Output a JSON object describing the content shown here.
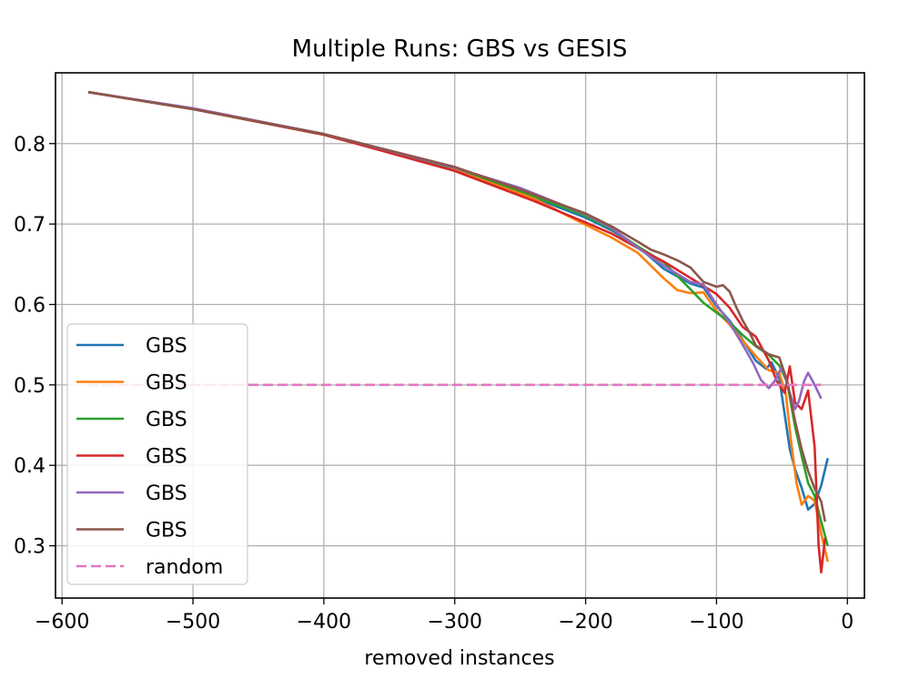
{
  "chart_data": {
    "type": "line",
    "title": "Multiple Runs: GBS vs GESIS",
    "xlabel": "removed instances",
    "ylabel": "",
    "xlim": [
      -605,
      13
    ],
    "ylim": [
      0.235,
      0.888
    ],
    "xticks": [
      -600,
      -500,
      -400,
      -300,
      -200,
      -100,
      0
    ],
    "xtick_labels": [
      "−600",
      "−500",
      "−400",
      "−300",
      "−200",
      "−100",
      "0"
    ],
    "yticks": [
      0.3,
      0.4,
      0.5,
      0.6,
      0.7,
      0.8
    ],
    "ytick_labels": [
      "0.3",
      "0.4",
      "0.5",
      "0.6",
      "0.7",
      "0.8"
    ],
    "grid": true,
    "legend_position": "lower-left",
    "series": [
      {
        "name": "GBS",
        "color": "#1f77b4",
        "dashed": false,
        "points": [
          [
            -580,
            0.864
          ],
          [
            -500,
            0.843
          ],
          [
            -400,
            0.811
          ],
          [
            -300,
            0.768
          ],
          [
            -240,
            0.733
          ],
          [
            -200,
            0.708
          ],
          [
            -180,
            0.692
          ],
          [
            -160,
            0.672
          ],
          [
            -140,
            0.644
          ],
          [
            -120,
            0.626
          ],
          [
            -110,
            0.621
          ],
          [
            -100,
            0.598
          ],
          [
            -90,
            0.58
          ],
          [
            -80,
            0.556
          ],
          [
            -70,
            0.53
          ],
          [
            -62,
            0.52
          ],
          [
            -58,
            0.528
          ],
          [
            -52,
            0.508
          ],
          [
            -48,
            0.464
          ],
          [
            -44,
            0.42
          ],
          [
            -40,
            0.395
          ],
          [
            -35,
            0.372
          ],
          [
            -30,
            0.345
          ],
          [
            -25,
            0.352
          ],
          [
            -20,
            0.375
          ],
          [
            -15,
            0.409
          ]
        ]
      },
      {
        "name": "GBS",
        "color": "#ff7f0e",
        "dashed": false,
        "points": [
          [
            -580,
            0.864
          ],
          [
            -500,
            0.843
          ],
          [
            -400,
            0.811
          ],
          [
            -300,
            0.768
          ],
          [
            -240,
            0.732
          ],
          [
            -200,
            0.699
          ],
          [
            -180,
            0.683
          ],
          [
            -160,
            0.664
          ],
          [
            -140,
            0.632
          ],
          [
            -130,
            0.618
          ],
          [
            -120,
            0.614
          ],
          [
            -110,
            0.615
          ],
          [
            -100,
            0.592
          ],
          [
            -90,
            0.575
          ],
          [
            -80,
            0.555
          ],
          [
            -70,
            0.536
          ],
          [
            -60,
            0.518
          ],
          [
            -52,
            0.515
          ],
          [
            -47,
            0.488
          ],
          [
            -43,
            0.43
          ],
          [
            -39,
            0.379
          ],
          [
            -35,
            0.351
          ],
          [
            -30,
            0.362
          ],
          [
            -25,
            0.356
          ],
          [
            -20,
            0.315
          ],
          [
            -15,
            0.28
          ]
        ]
      },
      {
        "name": "GBS",
        "color": "#2ca02c",
        "dashed": false,
        "points": [
          [
            -580,
            0.864
          ],
          [
            -500,
            0.843
          ],
          [
            -400,
            0.811
          ],
          [
            -320,
            0.776
          ],
          [
            -300,
            0.77
          ],
          [
            -240,
            0.735
          ],
          [
            -200,
            0.71
          ],
          [
            -180,
            0.694
          ],
          [
            -160,
            0.672
          ],
          [
            -140,
            0.652
          ],
          [
            -120,
            0.619
          ],
          [
            -110,
            0.602
          ],
          [
            -100,
            0.59
          ],
          [
            -90,
            0.578
          ],
          [
            -80,
            0.562
          ],
          [
            -70,
            0.548
          ],
          [
            -60,
            0.537
          ],
          [
            -52,
            0.524
          ],
          [
            -46,
            0.503
          ],
          [
            -40,
            0.448
          ],
          [
            -35,
            0.412
          ],
          [
            -30,
            0.378
          ],
          [
            -25,
            0.362
          ],
          [
            -20,
            0.33
          ],
          [
            -15,
            0.3
          ]
        ]
      },
      {
        "name": "GBS",
        "color": "#d62728",
        "dashed": false,
        "points": [
          [
            -580,
            0.864
          ],
          [
            -500,
            0.843
          ],
          [
            -400,
            0.811
          ],
          [
            -300,
            0.766
          ],
          [
            -240,
            0.729
          ],
          [
            -200,
            0.702
          ],
          [
            -180,
            0.688
          ],
          [
            -160,
            0.67
          ],
          [
            -140,
            0.653
          ],
          [
            -120,
            0.633
          ],
          [
            -100,
            0.613
          ],
          [
            -90,
            0.596
          ],
          [
            -80,
            0.572
          ],
          [
            -70,
            0.56
          ],
          [
            -60,
            0.53
          ],
          [
            -54,
            0.505
          ],
          [
            -48,
            0.49
          ],
          [
            -44,
            0.523
          ],
          [
            -40,
            0.478
          ],
          [
            -35,
            0.47
          ],
          [
            -30,
            0.493
          ],
          [
            -25,
            0.423
          ],
          [
            -22,
            0.3
          ],
          [
            -20,
            0.267
          ],
          [
            -17,
            0.31
          ]
        ]
      },
      {
        "name": "GBS",
        "color": "#9467bd",
        "dashed": false,
        "points": [
          [
            -580,
            0.864
          ],
          [
            -500,
            0.844
          ],
          [
            -400,
            0.812
          ],
          [
            -300,
            0.77
          ],
          [
            -250,
            0.745
          ],
          [
            -200,
            0.712
          ],
          [
            -180,
            0.695
          ],
          [
            -160,
            0.67
          ],
          [
            -140,
            0.648
          ],
          [
            -120,
            0.628
          ],
          [
            -110,
            0.625
          ],
          [
            -100,
            0.6
          ],
          [
            -90,
            0.577
          ],
          [
            -80,
            0.55
          ],
          [
            -72,
            0.527
          ],
          [
            -66,
            0.506
          ],
          [
            -60,
            0.496
          ],
          [
            -55,
            0.506
          ],
          [
            -50,
            0.523
          ],
          [
            -45,
            0.495
          ],
          [
            -40,
            0.47
          ],
          [
            -37,
            0.48
          ],
          [
            -33,
            0.505
          ],
          [
            -30,
            0.515
          ],
          [
            -25,
            0.5
          ],
          [
            -20,
            0.483
          ]
        ]
      },
      {
        "name": "GBS",
        "color": "#8c564b",
        "dashed": false,
        "points": [
          [
            -580,
            0.864
          ],
          [
            -500,
            0.843
          ],
          [
            -400,
            0.812
          ],
          [
            -300,
            0.771
          ],
          [
            -250,
            0.743
          ],
          [
            -200,
            0.713
          ],
          [
            -180,
            0.697
          ],
          [
            -160,
            0.678
          ],
          [
            -150,
            0.668
          ],
          [
            -140,
            0.662
          ],
          [
            -130,
            0.655
          ],
          [
            -120,
            0.646
          ],
          [
            -110,
            0.628
          ],
          [
            -100,
            0.622
          ],
          [
            -95,
            0.624
          ],
          [
            -90,
            0.616
          ],
          [
            -85,
            0.597
          ],
          [
            -80,
            0.58
          ],
          [
            -75,
            0.566
          ],
          [
            -70,
            0.549
          ],
          [
            -60,
            0.538
          ],
          [
            -52,
            0.534
          ],
          [
            -46,
            0.505
          ],
          [
            -40,
            0.455
          ],
          [
            -35,
            0.42
          ],
          [
            -30,
            0.393
          ],
          [
            -25,
            0.371
          ],
          [
            -20,
            0.355
          ],
          [
            -17,
            0.33
          ]
        ]
      },
      {
        "name": "random",
        "color": "#e377c2",
        "dashed": true,
        "points": [
          [
            -580,
            0.5
          ],
          [
            -20,
            0.5
          ]
        ]
      }
    ]
  }
}
